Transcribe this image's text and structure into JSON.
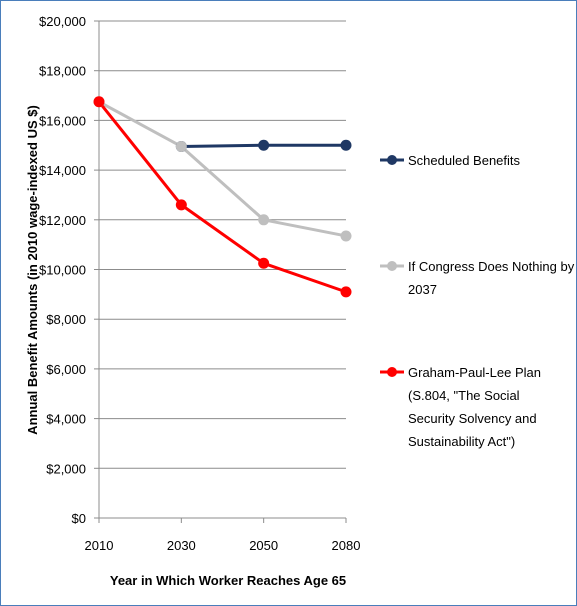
{
  "chart_data": {
    "type": "line",
    "title": "",
    "xlabel": "Year in Which Worker Reaches Age 65",
    "ylabel": "Annual Benefit Amounts (in 2010 wage-indexed US $)",
    "categories": [
      "2010",
      "2030",
      "2050",
      "2080"
    ],
    "ylim": [
      0,
      20000
    ],
    "y_ticks": [
      {
        "value": 0,
        "label": "$0"
      },
      {
        "value": 2000,
        "label": "$2,000"
      },
      {
        "value": 4000,
        "label": "$4,000"
      },
      {
        "value": 6000,
        "label": "$6,000"
      },
      {
        "value": 8000,
        "label": "$8,000"
      },
      {
        "value": 10000,
        "label": "$10,000"
      },
      {
        "value": 12000,
        "label": "$12,000"
      },
      {
        "value": 14000,
        "label": "$14,000"
      },
      {
        "value": 16000,
        "label": "$16,000"
      },
      {
        "value": 18000,
        "label": "$18,000"
      },
      {
        "value": 20000,
        "label": "$20,000"
      }
    ],
    "grid": true,
    "legend_position": "right",
    "series": [
      {
        "name": "Scheduled Benefits",
        "legend_lines": [
          "Scheduled Benefits"
        ],
        "color": "#1f3864",
        "values": [
          null,
          14950,
          15000,
          15000
        ]
      },
      {
        "name": "If Congress Does Nothing by 2037",
        "legend_lines": [
          "If Congress Does Nothing by",
          "2037"
        ],
        "color": "#bfbfbf",
        "values": [
          16750,
          14950,
          12000,
          11350
        ]
      },
      {
        "name": "Graham-Paul-Lee  Plan (S.804, \"The Social Security Solvency and Sustainability Act\")",
        "legend_lines": [
          "Graham-Paul-Lee  Plan",
          "(S.804, \"The Social",
          "Security Solvency and",
          "Sustainability Act\")"
        ],
        "color": "#ff0000",
        "values": [
          16750,
          12600,
          10250,
          9100
        ]
      }
    ]
  }
}
